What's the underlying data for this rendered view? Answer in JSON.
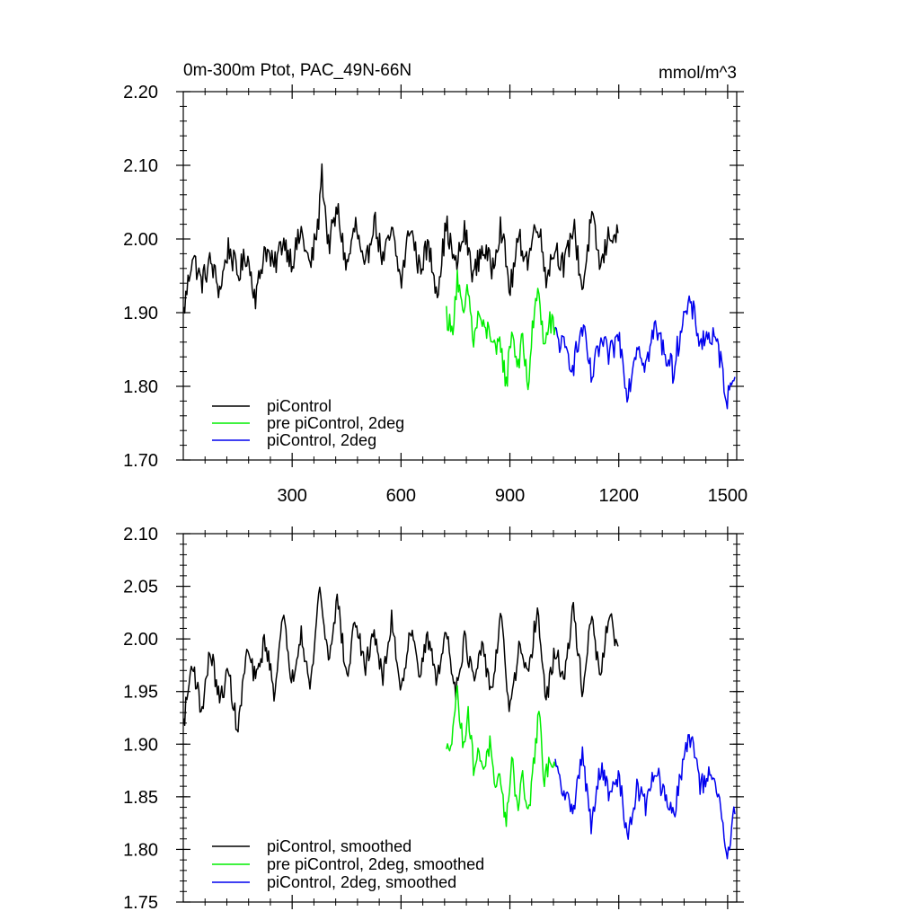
{
  "chart_data": [
    {
      "type": "line",
      "title": "0m-300m Ptot, PAC_49N-66N",
      "units": "mmol/m^3",
      "xlabel": "",
      "ylabel": "",
      "xlim": [
        0,
        1525
      ],
      "ylim": [
        1.7,
        2.2
      ],
      "x_ticks": [
        300,
        600,
        900,
        1200,
        1500
      ],
      "y_ticks": [
        1.7,
        1.8,
        1.9,
        2.0,
        2.1,
        2.2
      ],
      "y_tick_labels": [
        "1.70",
        "1.80",
        "1.90",
        "2.00",
        "2.10",
        "2.20"
      ],
      "x_tick_labels": [
        "300",
        "600",
        "900",
        "1200",
        "1500"
      ],
      "legend": [
        "piControl",
        "pre piControl, 2deg",
        "piControl, 2deg"
      ],
      "legend_position": "bottom-left",
      "series": [
        {
          "name": "piControl",
          "color": "#000000",
          "x": [
            1,
            25,
            50,
            75,
            100,
            125,
            150,
            175,
            200,
            225,
            250,
            275,
            300,
            325,
            350,
            375,
            380,
            400,
            425,
            450,
            475,
            500,
            525,
            550,
            575,
            600,
            625,
            650,
            675,
            700,
            725,
            750,
            775,
            800,
            825,
            850,
            875,
            900,
            925,
            950,
            975,
            1000,
            1025,
            1050,
            1075,
            1100,
            1125,
            1150,
            1175,
            1200
          ],
          "values": [
            1.9,
            1.98,
            1.94,
            1.97,
            1.93,
            1.99,
            1.95,
            1.98,
            1.92,
            1.99,
            1.96,
            2.0,
            1.97,
            2.01,
            1.96,
            2.03,
            2.1,
            1.99,
            2.04,
            1.96,
            2.02,
            1.95,
            2.03,
            1.97,
            2.01,
            1.94,
            2.02,
            1.96,
            1.99,
            1.93,
            2.02,
            1.96,
            2.01,
            1.95,
            1.99,
            1.96,
            2.02,
            1.93,
            2.0,
            1.97,
            2.03,
            1.95,
            1.99,
            1.96,
            2.02,
            1.93,
            2.03,
            1.96,
            2.01,
            2.0
          ]
        },
        {
          "name": "pre piControl, 2deg",
          "color": "#00ee00",
          "x": [
            725,
            740,
            755,
            770,
            785,
            800,
            815,
            830,
            845,
            860,
            875,
            890,
            905,
            920,
            935,
            950,
            965,
            980,
            995,
            1010,
            1025
          ],
          "values": [
            1.9,
            1.87,
            1.95,
            1.89,
            1.93,
            1.86,
            1.9,
            1.87,
            1.88,
            1.84,
            1.86,
            1.8,
            1.88,
            1.83,
            1.86,
            1.8,
            1.89,
            1.93,
            1.85,
            1.89,
            1.87
          ]
        },
        {
          "name": "piControl, 2deg",
          "color": "#0000ee",
          "x": [
            1025,
            1050,
            1075,
            1100,
            1125,
            1150,
            1175,
            1200,
            1225,
            1250,
            1275,
            1300,
            1325,
            1350,
            1375,
            1400,
            1425,
            1450,
            1475,
            1500,
            1520
          ],
          "values": [
            1.87,
            1.85,
            1.83,
            1.88,
            1.81,
            1.86,
            1.84,
            1.87,
            1.79,
            1.86,
            1.83,
            1.88,
            1.85,
            1.82,
            1.89,
            1.91,
            1.86,
            1.87,
            1.85,
            1.78,
            1.83
          ]
        }
      ]
    },
    {
      "type": "line",
      "title": "",
      "xlabel": "",
      "ylabel": "",
      "xlim": [
        0,
        1525
      ],
      "ylim": [
        1.75,
        2.1
      ],
      "y_ticks": [
        1.75,
        1.8,
        1.85,
        1.9,
        1.95,
        2.0,
        2.05,
        2.1
      ],
      "y_tick_labels": [
        "1.75",
        "1.80",
        "1.85",
        "1.90",
        "1.95",
        "2.00",
        "2.05",
        "2.10"
      ],
      "x_ticks": [
        300,
        600,
        900,
        1200,
        1500
      ],
      "legend": [
        "piControl, smoothed",
        "pre piControl, 2deg, smoothed",
        "piControl, 2deg, smoothed"
      ],
      "legend_position": "bottom-left",
      "series": [
        {
          "name": "piControl, smoothed",
          "color": "#000000",
          "x": [
            1,
            25,
            50,
            75,
            100,
            125,
            150,
            175,
            200,
            225,
            250,
            275,
            300,
            325,
            350,
            375,
            400,
            425,
            450,
            475,
            500,
            525,
            550,
            575,
            600,
            625,
            650,
            675,
            700,
            725,
            750,
            775,
            800,
            825,
            850,
            875,
            900,
            925,
            950,
            975,
            1000,
            1025,
            1050,
            1075,
            1100,
            1125,
            1150,
            1175,
            1200
          ],
          "values": [
            1.92,
            1.98,
            1.93,
            1.99,
            1.94,
            1.97,
            1.91,
            1.99,
            1.96,
            2.0,
            1.95,
            2.02,
            1.96,
            2.01,
            1.95,
            2.05,
            1.98,
            2.04,
            1.96,
            2.02,
            1.97,
            2.01,
            1.96,
            2.02,
            1.95,
            2.01,
            1.97,
            2.0,
            1.96,
            2.01,
            1.95,
            2.0,
            1.96,
            1.99,
            1.95,
            2.02,
            1.93,
            1.99,
            1.96,
            2.03,
            1.94,
            1.99,
            1.96,
            2.03,
            1.95,
            2.02,
            1.96,
            2.03,
            1.98
          ]
        },
        {
          "name": "pre piControl, 2deg, smoothed",
          "color": "#00ee00",
          "x": [
            725,
            740,
            755,
            770,
            785,
            800,
            815,
            830,
            845,
            860,
            875,
            890,
            905,
            920,
            935,
            950,
            965,
            980,
            995,
            1010,
            1025
          ],
          "values": [
            1.89,
            1.91,
            1.95,
            1.9,
            1.93,
            1.88,
            1.89,
            1.88,
            1.9,
            1.85,
            1.87,
            1.82,
            1.89,
            1.84,
            1.87,
            1.83,
            1.88,
            1.93,
            1.86,
            1.89,
            1.88
          ]
        },
        {
          "name": "piControl, 2deg, smoothed",
          "color": "#0000ee",
          "x": [
            1025,
            1050,
            1075,
            1100,
            1125,
            1150,
            1175,
            1200,
            1225,
            1250,
            1275,
            1300,
            1325,
            1350,
            1375,
            1400,
            1425,
            1450,
            1475,
            1500,
            1520
          ],
          "values": [
            1.88,
            1.85,
            1.84,
            1.89,
            1.82,
            1.88,
            1.85,
            1.87,
            1.81,
            1.86,
            1.84,
            1.88,
            1.85,
            1.83,
            1.88,
            1.91,
            1.86,
            1.87,
            1.85,
            1.79,
            1.84
          ]
        }
      ]
    }
  ]
}
